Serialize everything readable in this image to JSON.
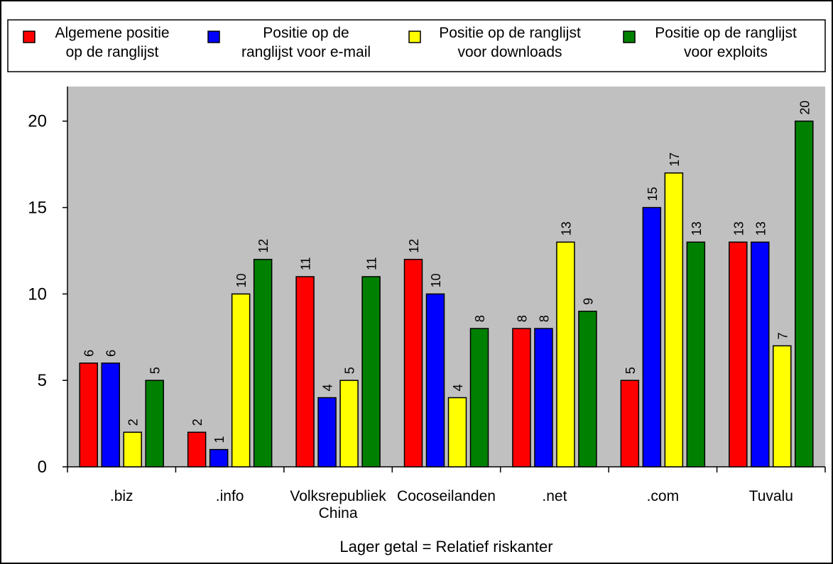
{
  "chart_data": {
    "type": "bar",
    "title": "",
    "xlabel": "Lager getal = Relatief riskanter",
    "ylabel": "",
    "ylim": [
      0,
      22
    ],
    "yticks": [
      "0",
      "5",
      "10",
      "15",
      "20"
    ],
    "categories": [
      [
        ".biz"
      ],
      [
        ".info"
      ],
      [
        "Volksrepubliek",
        "China"
      ],
      [
        "Cocoseilanden"
      ],
      [
        ".net"
      ],
      [
        ".com"
      ],
      [
        "Tuvalu"
      ]
    ],
    "series": [
      {
        "name": [
          "Algemene positie",
          "op de ranglijst"
        ],
        "color": "#ff0000",
        "values": [
          6,
          2,
          11,
          12,
          8,
          5,
          13
        ]
      },
      {
        "name": [
          "Positie op de",
          "ranglijst voor e-mail"
        ],
        "color": "#0000ff",
        "values": [
          6,
          1,
          4,
          10,
          8,
          15,
          13
        ]
      },
      {
        "name": [
          "Positie op de ranglijst",
          "voor downloads"
        ],
        "color": "#ffff00",
        "values": [
          2,
          10,
          5,
          4,
          13,
          17,
          7
        ]
      },
      {
        "name": [
          "Positie op de ranglijst",
          "voor exploits"
        ],
        "color": "#008000",
        "values": [
          5,
          12,
          11,
          8,
          9,
          13,
          20
        ]
      }
    ],
    "legend_position": "top",
    "grid": false,
    "plot_background": "#c0c0c0"
  }
}
